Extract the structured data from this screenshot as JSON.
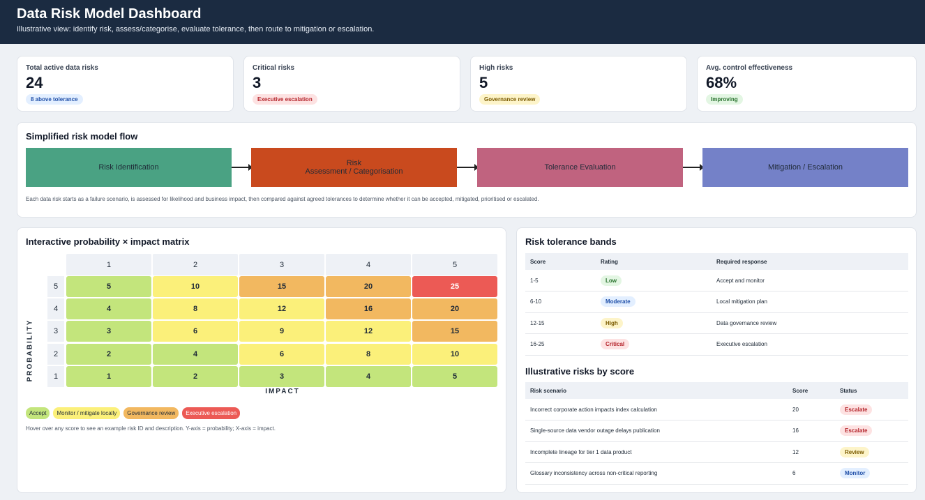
{
  "header": {
    "title": "Data Risk Model Dashboard",
    "subtitle": "Illustrative view: identify risk, assess/categorise, evaluate tolerance, then route to mitigation or escalation."
  },
  "kpis": [
    {
      "label": "Total active data risks",
      "value": "24",
      "badge": "8 above tolerance",
      "badge_color": "blue"
    },
    {
      "label": "Critical risks",
      "value": "3",
      "badge": "Executive escalation",
      "badge_color": "red"
    },
    {
      "label": "High risks",
      "value": "5",
      "badge": "Governance review",
      "badge_color": "yellow"
    },
    {
      "label": "Avg. control effectiveness",
      "value": "68%",
      "badge": "Improving",
      "badge_color": "green"
    }
  ],
  "flow": {
    "title": "Simplified risk model flow",
    "steps": [
      {
        "label": "Risk Identification",
        "color": "#4aa283"
      },
      {
        "label": "Risk\nAssessment / Categorisation",
        "color": "#c94a1e"
      },
      {
        "label": "Tolerance Evaluation",
        "color": "#c0637f"
      },
      {
        "label": "Mitigation / Escalation",
        "color": "#7481c8"
      }
    ],
    "note": "Each data risk starts as a failure scenario, is assessed for likelihood and business impact, then compared against agreed tolerances to determine whether it can be accepted, mitigated, prioritised or escalated."
  },
  "matrix": {
    "title": "Interactive probability × impact matrix",
    "impact_headers": [
      "1",
      "2",
      "3",
      "4",
      "5"
    ],
    "probability_headers": [
      "5",
      "4",
      "3",
      "2",
      "1"
    ],
    "y_axis_label": "PROBABILITY",
    "x_axis_label": "IMPACT",
    "rows": [
      [
        "5",
        "10",
        "15",
        "20",
        "25"
      ],
      [
        "4",
        "8",
        "12",
        "16",
        "20"
      ],
      [
        "3",
        "6",
        "9",
        "12",
        "15"
      ],
      [
        "2",
        "4",
        "6",
        "8",
        "10"
      ],
      [
        "1",
        "2",
        "3",
        "4",
        "5"
      ]
    ],
    "row_colors": [
      [
        "g",
        "y",
        "o",
        "o",
        "r"
      ],
      [
        "g",
        "y",
        "y",
        "o",
        "o"
      ],
      [
        "g",
        "y",
        "y",
        "y",
        "o"
      ],
      [
        "g",
        "g",
        "y",
        "y",
        "y"
      ],
      [
        "g",
        "g",
        "g",
        "g",
        "g"
      ]
    ],
    "legend": [
      {
        "label": "Accept",
        "color": "#c3e57c"
      },
      {
        "label": "Monitor / mitigate locally",
        "color": "#fbf07a"
      },
      {
        "label": "Governance review",
        "color": "#f2b860"
      },
      {
        "label": "Executive escalation",
        "color": "#ec5a55"
      }
    ],
    "hint": "Hover over any score to see an example risk ID and description. Y-axis = probability; X-axis = impact."
  },
  "tolerance": {
    "title": "Risk tolerance bands",
    "columns": [
      "Score",
      "Rating",
      "Required response"
    ],
    "rows": [
      {
        "score": "1-5",
        "rating": "Low",
        "color": "green",
        "response": "Accept and monitor"
      },
      {
        "score": "6-10",
        "rating": "Moderate",
        "color": "blue",
        "response": "Local mitigation plan"
      },
      {
        "score": "12-15",
        "rating": "High",
        "color": "yellow",
        "response": "Data governance review"
      },
      {
        "score": "16-25",
        "rating": "Critical",
        "color": "red",
        "response": "Executive escalation"
      }
    ]
  },
  "risks": {
    "title": "Illustrative risks by score",
    "columns": [
      "Risk scenario",
      "Score",
      "Status"
    ],
    "rows": [
      {
        "scenario": "Incorrect corporate action impacts index calculation",
        "score": "20",
        "status": "Escalate",
        "color": "red"
      },
      {
        "scenario": "Single-source data vendor outage delays publication",
        "score": "16",
        "status": "Escalate",
        "color": "red"
      },
      {
        "scenario": "Incomplete lineage for tier 1 data product",
        "score": "12",
        "status": "Review",
        "color": "yellow"
      },
      {
        "scenario": "Glossary inconsistency across non-critical reporting",
        "score": "6",
        "status": "Monitor",
        "color": "blue"
      }
    ]
  }
}
